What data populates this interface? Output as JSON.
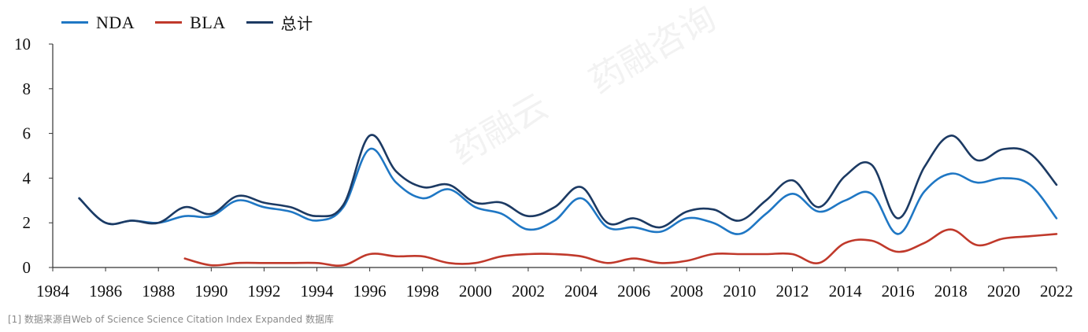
{
  "chart_data": {
    "type": "line",
    "x": [
      1985,
      1986,
      1987,
      1988,
      1989,
      1990,
      1991,
      1992,
      1993,
      1994,
      1995,
      1996,
      1997,
      1998,
      1999,
      2000,
      2001,
      2002,
      2003,
      2004,
      2005,
      2006,
      2007,
      2008,
      2009,
      2010,
      2011,
      2012,
      2013,
      2014,
      2015,
      2016,
      2017,
      2018,
      2019,
      2020,
      2021,
      2022
    ],
    "series": [
      {
        "name": "NDA",
        "color": "#1f77c4",
        "values": [
          3.1,
          2.0,
          2.1,
          2.0,
          2.3,
          2.3,
          3.0,
          2.7,
          2.5,
          2.1,
          2.7,
          5.3,
          3.8,
          3.1,
          3.5,
          2.7,
          2.4,
          1.7,
          2.1,
          3.1,
          1.8,
          1.8,
          1.6,
          2.2,
          2.0,
          1.5,
          2.4,
          3.3,
          2.5,
          3.0,
          3.3,
          1.5,
          3.4,
          4.2,
          3.8,
          4.0,
          3.7,
          2.2
        ]
      },
      {
        "name": "BLA",
        "color": "#c0392b",
        "values": [
          null,
          null,
          null,
          null,
          0.4,
          0.1,
          0.2,
          0.2,
          0.2,
          0.2,
          0.1,
          0.6,
          0.5,
          0.5,
          0.2,
          0.2,
          0.5,
          0.6,
          0.6,
          0.5,
          0.2,
          0.4,
          0.2,
          0.3,
          0.6,
          0.6,
          0.6,
          0.6,
          0.2,
          1.1,
          1.2,
          0.7,
          1.1,
          1.7,
          1.0,
          1.3,
          1.4,
          1.5
        ]
      },
      {
        "name": "总计",
        "color": "#1c3a63",
        "values": [
          3.1,
          2.0,
          2.1,
          2.0,
          2.7,
          2.4,
          3.2,
          2.9,
          2.7,
          2.3,
          2.8,
          5.9,
          4.3,
          3.6,
          3.7,
          2.9,
          2.9,
          2.3,
          2.7,
          3.6,
          2.0,
          2.2,
          1.8,
          2.5,
          2.6,
          2.1,
          3.0,
          3.9,
          2.7,
          4.1,
          4.6,
          2.2,
          4.5,
          5.9,
          4.8,
          5.3,
          5.1,
          3.7
        ]
      }
    ],
    "x_ticks": [
      "1984",
      "1986",
      "1988",
      "1990",
      "1992",
      "1994",
      "1996",
      "1998",
      "2000",
      "2002",
      "2004",
      "2006",
      "2008",
      "2010",
      "2012",
      "2014",
      "2016",
      "2018",
      "2020",
      "2022"
    ],
    "y_ticks": [
      "0",
      "2",
      "4",
      "6",
      "8",
      "10"
    ],
    "xlim": [
      1984,
      2022
    ],
    "ylim": [
      0,
      10
    ],
    "grid": false,
    "legend_position": "top-left",
    "source_note": "[1] 数据来源自Web of Science Science Citation Index Expanded 数据库"
  }
}
